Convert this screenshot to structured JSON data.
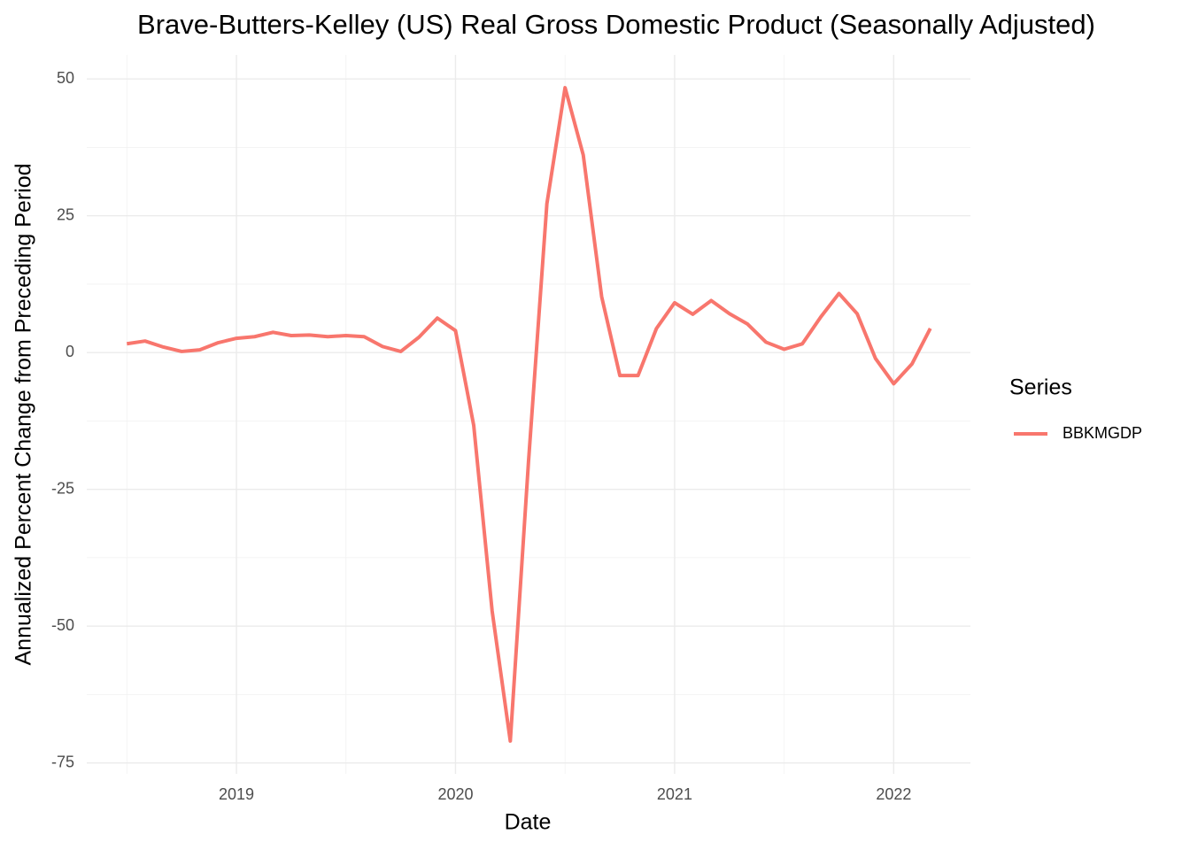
{
  "chart_data": {
    "type": "line",
    "title": "Brave-Butters-Kelley (US) Real Gross Domestic Product (Seasonally Adjusted)",
    "x_label": "Date",
    "y_label": "Annualized Percent Change from Preceding Period",
    "legend_title": "Series",
    "x": [
      2018.5,
      2018.583,
      2018.667,
      2018.75,
      2018.833,
      2018.917,
      2019.0,
      2019.083,
      2019.167,
      2019.25,
      2019.333,
      2019.417,
      2019.5,
      2019.583,
      2019.667,
      2019.75,
      2019.833,
      2019.917,
      2020.0,
      2020.083,
      2020.167,
      2020.25,
      2020.333,
      2020.417,
      2020.5,
      2020.583,
      2020.667,
      2020.75,
      2020.833,
      2020.917,
      2021.0,
      2021.083,
      2021.167,
      2021.25,
      2021.333,
      2021.417,
      2021.5,
      2021.583,
      2021.667,
      2021.75,
      2021.833,
      2021.917,
      2022.0,
      2022.083,
      2022.167
    ],
    "series": [
      {
        "name": "BBKMGDP",
        "color": "#F8766D",
        "values": [
          1.6,
          2.1,
          1.0,
          0.2,
          0.5,
          1.8,
          2.6,
          2.9,
          3.7,
          3.1,
          3.2,
          2.9,
          3.1,
          2.9,
          1.1,
          0.2,
          2.8,
          6.3,
          4.0,
          -13.3,
          -47.2,
          -71.0,
          -20.0,
          27.2,
          48.4,
          36.1,
          10.2,
          -4.2,
          -4.2,
          4.4,
          9.1,
          7.0,
          9.5,
          7.1,
          5.2,
          1.9,
          0.6,
          1.6,
          6.5,
          10.8,
          7.1,
          -1.1,
          -5.7,
          -2.1,
          4.4
        ]
      }
    ],
    "xlim": [
      2018.317,
      2022.35
    ],
    "xticks": [
      2019,
      2020,
      2021,
      2022
    ],
    "ylim": [
      -77,
      54.4
    ],
    "yticks": [
      -75,
      -50,
      -25,
      0,
      25,
      50
    ],
    "grid": true,
    "legend": "right"
  }
}
